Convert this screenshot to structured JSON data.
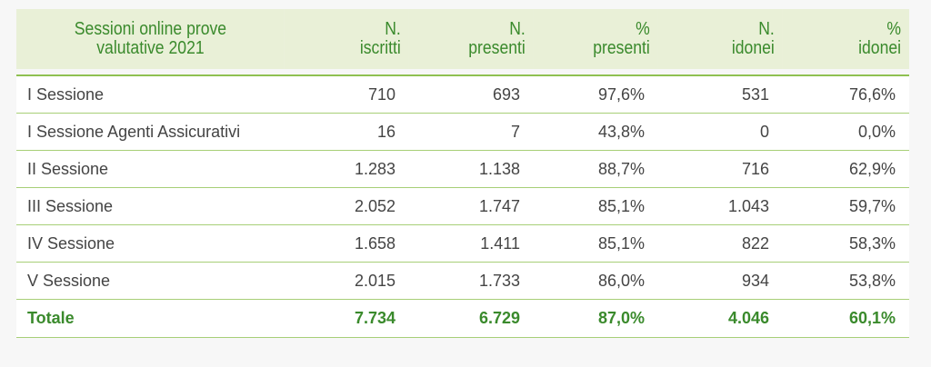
{
  "table": {
    "headers": [
      [
        "Sessioni online prove",
        "valutative 2021"
      ],
      [
        "N.",
        "iscritti"
      ],
      [
        "N.",
        "presenti"
      ],
      [
        "%",
        "presenti"
      ],
      [
        "N.",
        "idonei"
      ],
      [
        "%",
        "idonei"
      ]
    ],
    "rows": [
      [
        "I Sessione",
        "710",
        "693",
        "97,6%",
        "531",
        "76,6%"
      ],
      [
        "I Sessione Agenti Assicurativi",
        "16",
        "7",
        "43,8%",
        "0",
        "0,0%"
      ],
      [
        "II Sessione",
        "1.283",
        "1.138",
        "88,7%",
        "716",
        "62,9%"
      ],
      [
        "III Sessione",
        "2.052",
        "1.747",
        "85,1%",
        "1.043",
        "59,7%"
      ],
      [
        "IV Sessione",
        "1.658",
        "1.411",
        "85,1%",
        "822",
        "58,3%"
      ],
      [
        "V Sessione",
        "2.015",
        "1.733",
        "86,0%",
        "934",
        "53,8%"
      ]
    ],
    "total": [
      "Totale",
      "7.734",
      "6.729",
      "87,0%",
      "4.046",
      "60,1%"
    ]
  },
  "colors": {
    "header_bg": "#e9f0d7",
    "accent_green": "#3a8a2c",
    "rule_green": "#a7cf77",
    "body_text": "#444444"
  }
}
